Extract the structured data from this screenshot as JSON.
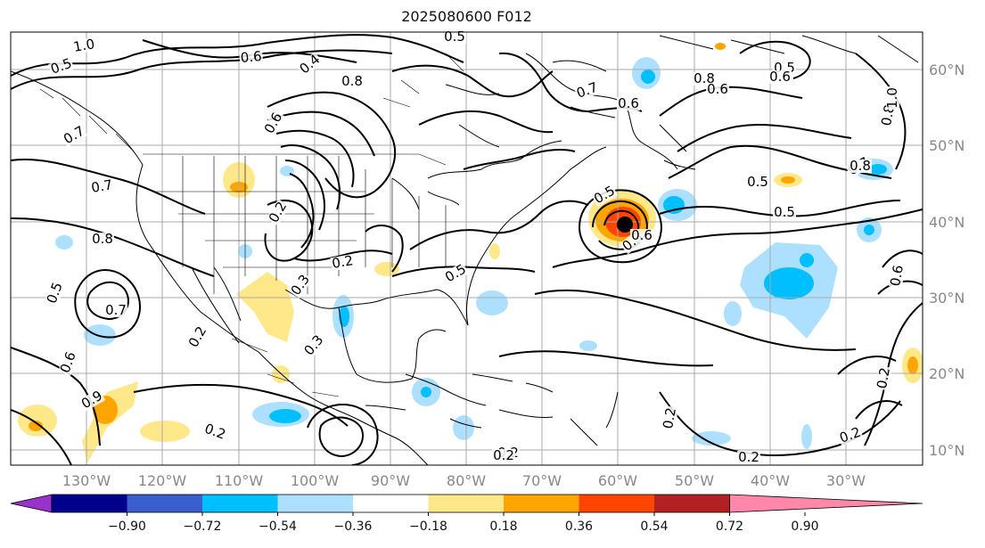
{
  "title": "2025080600 F012",
  "longitude_labels": [
    "130°W",
    "120°W",
    "110°W",
    "100°W",
    "90°W",
    "80°W",
    "70°W",
    "60°W",
    "50°W",
    "40°W",
    "30°W"
  ],
  "latitude_labels": [
    "60°N",
    "50°N",
    "40°N",
    "30°N",
    "20°N",
    "10°N"
  ],
  "colorbar": {
    "ticks": [
      "−0.90",
      "−0.72",
      "−0.54",
      "−0.36",
      "−0.18",
      "0.18",
      "0.36",
      "0.54",
      "0.72",
      "0.90"
    ],
    "colors": [
      "#9932cc",
      "#00008b",
      "#3a5fcd",
      "#00bfff",
      "#ade0ff",
      "#ffffff",
      "#ffe88a",
      "#ffa500",
      "#ff4500",
      "#b22222",
      "#ff88aa"
    ]
  },
  "contour_labels": [
    "1.0",
    "0.6",
    "0.5",
    "0.4",
    "0.8",
    "0.6",
    "0.5",
    "0.7",
    "0.8",
    "0.6",
    "0.5",
    "0.7",
    "0.6",
    "0.7",
    "0.8",
    "0.6",
    "0.5",
    "0.7",
    "0.2",
    "0.3",
    "0.3",
    "0.2",
    "0.5",
    "0.2",
    "0.5",
    "0.3",
    "0.5",
    "0.7",
    "0.8",
    "0.6",
    "0.5",
    "0.8",
    "1.0",
    "0.6",
    "0.2",
    "0.2",
    "0.2",
    "0.2",
    "0.2",
    "0.9",
    "0.2",
    "0.6",
    "0.2"
  ],
  "colors": {
    "land": "#ffffff",
    "coast": "#000000",
    "grid": "#aaaaaa"
  }
}
